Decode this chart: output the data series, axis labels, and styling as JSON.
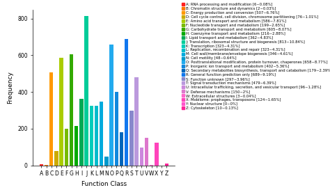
{
  "categories": [
    "A",
    "B",
    "C",
    "D",
    "E",
    "F",
    "G",
    "H",
    "I",
    "J",
    "K",
    "L",
    "M",
    "N",
    "O",
    "P",
    "Q",
    "R",
    "S",
    "T",
    "U",
    "V",
    "W",
    "X",
    "Y",
    "Z"
  ],
  "values": [
    6,
    2,
    507,
    76,
    586,
    199,
    605,
    216,
    362,
    813,
    323,
    323,
    346,
    48,
    658,
    402,
    179,
    689,
    297,
    479,
    96,
    150,
    3,
    124,
    0,
    10
  ],
  "bar_colors": [
    "#FF2222",
    "#FF6600",
    "#FF8800",
    "#DDAA00",
    "#AACC00",
    "#88BB00",
    "#44AA00",
    "#00AA00",
    "#00AA44",
    "#00CC99",
    "#00CCBB",
    "#00BBCC",
    "#00AADD",
    "#0099CC",
    "#0099EE",
    "#0088DD",
    "#0077CC",
    "#1188EE",
    "#7777DD",
    "#BB88EE",
    "#CC88DD",
    "#DD77CC",
    "#FF55CC",
    "#FF44BB",
    "#FF44CC",
    "#FF3399"
  ],
  "legend_labels": [
    "A: RNA processing and modification [6~0.08%]",
    "B: Chromatin structure and dynamics [2~0.03%]",
    "C: Energy production and conversion [507~6.76%]",
    "D: Cell cycle control, cell division, chromosome partitioning [76~1.01%]",
    "E: Amino acid transport and metabolism [586~7.81%]",
    "F: Nucleotide transport and metabolism [199~2.65%]",
    "G: Carbohydrate transport and metabolism [605~8.07%]",
    "H: Coenzyme transport and metabolism [216~2.88%]",
    "I: Lipid transport and metabolism [362~4.83%]",
    "J: Translation, ribosomal structure and biogenesis [813~10.84%]",
    "K: Transcription [323~4.31%]",
    "L: Replication, recombination and repair [323~4.31%]",
    "M: Cell wall/membrane/envelope biogenesis [346~4.61%]",
    "N: Cell motility [48~0.64%]",
    "O: Posttranslational modification, protein turnover, chaperones [658~8.77%]",
    "P: Inorganic ion transport and metabolism [402~5.36%]",
    "Q: Secondary metabolites biosynthesis, transport and catabolism [179~2.39%]",
    "R: General function prediction only [689~9.19%]",
    "S: Function unknown [297~3.96%]",
    "T: Signal transduction mechanisms [479~6.39%]",
    "U: Intracellular trafficking, secretion, and vesicular transport [96~1.28%]",
    "V: Defense mechanisms [150~2%]",
    "W: Extracellular structures [3~0.04%]",
    "X: Mobilome: prophages, transposons [124~1.65%]",
    "Y: Nuclear structure [0~0%]",
    "Z: Cytoskeleton [10~0.13%]"
  ],
  "xlabel": "Function Class",
  "ylabel": "Frequency",
  "ylim": [
    0,
    850
  ],
  "yticks": [
    0,
    200,
    400,
    600,
    800
  ],
  "legend_fontsize": 3.8,
  "axis_fontsize": 6.5,
  "tick_fontsize": 5.5
}
